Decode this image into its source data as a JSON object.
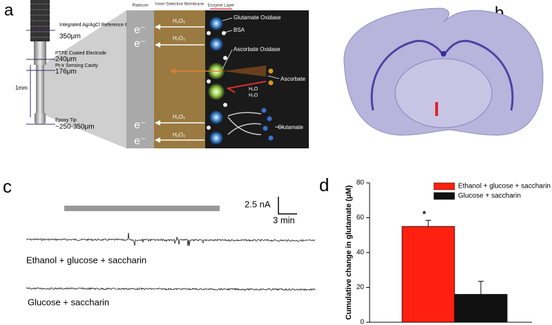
{
  "panels": {
    "a": "a",
    "b": "b",
    "c": "c",
    "d": "d"
  },
  "diagram": {
    "electrode": {
      "reference": "Integrated Ag/AgCl Reference Electrode",
      "reference_size": "350μm",
      "ptfe": "PTFE Coated Electrode",
      "ptfe_size": "240μm",
      "cavity": "Pt-Ir Sensing Cavity",
      "cavity_size": "176μm",
      "length": "1mm",
      "tip": "Epoxy Tip",
      "tip_size": "~250-350μm"
    },
    "columns": [
      "Platinum",
      "Inner-Selective Membrane",
      "Enzyme Layer"
    ],
    "electrons": [
      "e⁻",
      "e⁻",
      "e⁻",
      "e⁻"
    ],
    "peroxide": [
      "H₂O₂",
      "H₂O₂",
      "H₂O₂",
      "H₂O₂"
    ],
    "labels": {
      "gox": "Glutamate Oxidase",
      "bsa": "BSA",
      "aox": "Ascorbate Oxidase",
      "ascorbate": "Ascorbate",
      "water1": "H₂O",
      "water2": "H₂O",
      "glutamate": "Glutamate"
    }
  },
  "trace": {
    "scale_current": "2.5 nA",
    "scale_time": "3 min",
    "labels": [
      "Ethanol + glucose + saccharin",
      "Glucose + saccharin"
    ]
  },
  "chart_data": {
    "type": "bar",
    "ylabel": "Cumulative change in glutamate (μM)",
    "categories": [
      null
    ],
    "series": [
      {
        "name": "Ethanol + glucose + saccharin",
        "color": "#ff2010",
        "values": [
          55
        ],
        "errors": [
          3.5
        ]
      },
      {
        "name": "Glucose + saccharin",
        "color": "#111111",
        "values": [
          16
        ],
        "errors": [
          7.5
        ]
      }
    ],
    "ylim": [
      0,
      80
    ],
    "yticks": [
      0,
      20,
      40,
      60,
      80
    ],
    "annotation": "*",
    "legend": "upper right"
  }
}
